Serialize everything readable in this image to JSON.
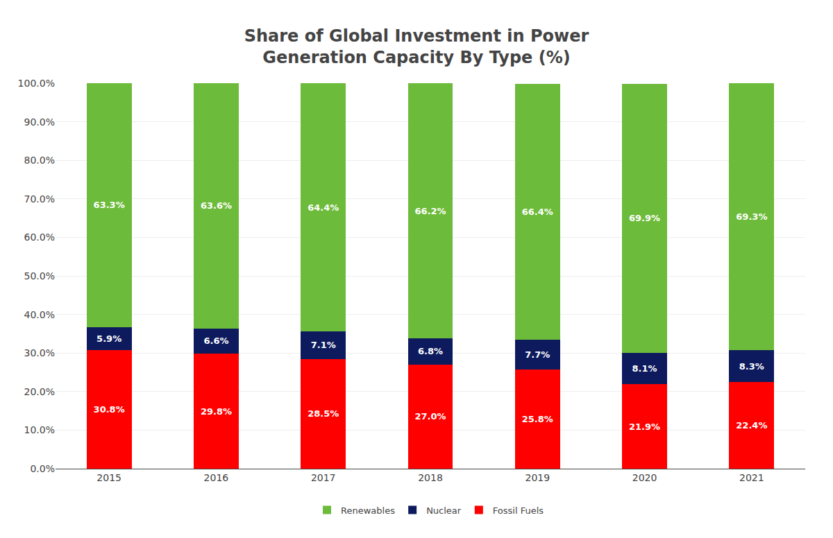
{
  "chart_data": {
    "type": "bar",
    "title": "Share of Global Investment in Power\nGeneration Capacity By Type (%)",
    "categories": [
      "2015",
      "2016",
      "2017",
      "2018",
      "2019",
      "2020",
      "2021"
    ],
    "stacked": true,
    "data_labels": true,
    "grid": true,
    "legend": "bottom",
    "series": [
      {
        "name": "Fossil Fuels",
        "color": "#FF0000",
        "values": [
          30.8,
          29.8,
          28.5,
          27.0,
          25.8,
          21.9,
          22.4
        ],
        "value_labels": [
          "30.8%",
          "29.8%",
          "28.5%",
          "27.0%",
          "25.8%",
          "21.9%",
          "22.4%"
        ]
      },
      {
        "name": "Nuclear",
        "color": "#0D1B5E",
        "values": [
          5.9,
          6.6,
          7.1,
          6.8,
          7.7,
          8.1,
          8.3
        ],
        "value_labels": [
          "5.9%",
          "6.6%",
          "7.1%",
          "6.8%",
          "7.7%",
          "8.1%",
          "8.3%"
        ]
      },
      {
        "name": "Renewables",
        "color": "#6DBB3A",
        "values": [
          63.3,
          63.6,
          64.4,
          66.2,
          66.4,
          69.9,
          69.3
        ],
        "value_labels": [
          "63.3%",
          "63.6%",
          "64.4%",
          "66.2%",
          "66.4%",
          "69.9%",
          "69.3%"
        ]
      }
    ],
    "ylim": [
      0,
      100
    ],
    "yticks": [
      {
        "value": 0,
        "label": "0.0%"
      },
      {
        "value": 10,
        "label": "10.0%"
      },
      {
        "value": 20,
        "label": "20.0%"
      },
      {
        "value": 30,
        "label": "30.0%"
      },
      {
        "value": 40,
        "label": "40.0%"
      },
      {
        "value": 50,
        "label": "50.0%"
      },
      {
        "value": 60,
        "label": "60.0%"
      },
      {
        "value": 70,
        "label": "70.0%"
      },
      {
        "value": 80,
        "label": "80.0%"
      },
      {
        "value": 90,
        "label": "90.0%"
      },
      {
        "value": 100,
        "label": "100.0%"
      }
    ]
  }
}
